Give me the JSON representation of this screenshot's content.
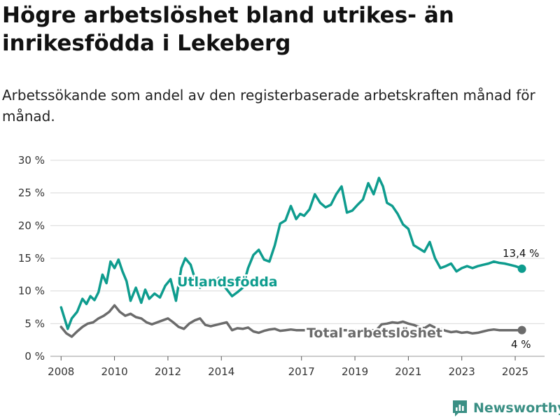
{
  "title": "Högre arbetslöshet bland utrikes- än inrikesfödda i Lekeberg",
  "subtitle": "Arbetssökande som andel av den registerbaserade arbetskraften månad för månad.",
  "brand": "Newsworthy",
  "colors": {
    "foreign": "#0e9c8e",
    "total": "#6b6b6b",
    "grid": "#d9d9d9",
    "brand": "#3a8f84"
  },
  "chart_data": {
    "type": "line",
    "ylim": [
      0,
      30
    ],
    "yticks": [
      0,
      5,
      10,
      15,
      20,
      25,
      30
    ],
    "ytick_labels": [
      "0 %",
      "5 %",
      "10 %",
      "15 %",
      "20 %",
      "25 %",
      "30 %"
    ],
    "xlim": [
      2007.6,
      2026.1
    ],
    "xticks": [
      2008,
      2010,
      2012,
      2014,
      2017,
      2019,
      2021,
      2023,
      2025
    ],
    "xtick_labels": [
      "2008",
      "2010",
      "2012",
      "2014",
      "2017",
      "2019",
      "2021",
      "2023",
      "2025"
    ],
    "grid": true,
    "series": [
      {
        "name": "Utlandsfödda",
        "key": "foreign",
        "end_label": "13,4 %",
        "x": [
          2008.0,
          2008.25,
          2008.4,
          2008.6,
          2008.8,
          2008.95,
          2009.1,
          2009.25,
          2009.4,
          2009.55,
          2009.7,
          2009.85,
          2010.0,
          2010.15,
          2010.3,
          2010.45,
          2010.6,
          2010.8,
          2011.0,
          2011.15,
          2011.3,
          2011.5,
          2011.7,
          2011.9,
          2012.1,
          2012.3,
          2012.5,
          2012.65,
          2012.85,
          2013.0,
          2013.2,
          2013.45,
          2013.7,
          2013.9,
          2014.15,
          2014.4,
          2014.6,
          2014.8,
          2015.0,
          2015.2,
          2015.4,
          2015.6,
          2015.8,
          2016.0,
          2016.2,
          2016.4,
          2016.6,
          2016.8,
          2016.95,
          2017.1,
          2017.3,
          2017.5,
          2017.7,
          2017.9,
          2018.1,
          2018.3,
          2018.5,
          2018.7,
          2018.9,
          2019.1,
          2019.3,
          2019.5,
          2019.7,
          2019.9,
          2020.05,
          2020.2,
          2020.4,
          2020.6,
          2020.8,
          2021.0,
          2021.2,
          2021.4,
          2021.6,
          2021.8,
          2022.0,
          2022.2,
          2022.4,
          2022.6,
          2022.8,
          2023.0,
          2023.2,
          2023.4,
          2023.6,
          2023.8,
          2024.0,
          2024.2,
          2024.4,
          2024.6,
          2024.8,
          2025.0,
          2025.15,
          2025.25
        ],
        "y": [
          7.5,
          4.2,
          5.8,
          6.8,
          8.8,
          8.0,
          9.2,
          8.6,
          9.8,
          12.5,
          11.2,
          14.5,
          13.5,
          14.8,
          13.0,
          11.5,
          8.5,
          10.5,
          8.2,
          10.2,
          8.8,
          9.6,
          9.0,
          10.8,
          11.8,
          8.5,
          13.5,
          15.0,
          14.0,
          12.0,
          10.5,
          11.2,
          10.8,
          12.0,
          10.5,
          9.2,
          9.8,
          10.5,
          13.5,
          15.5,
          16.3,
          14.8,
          14.5,
          17.0,
          20.3,
          20.8,
          23.0,
          21.0,
          21.8,
          21.5,
          22.5,
          24.8,
          23.5,
          22.8,
          23.2,
          24.8,
          26.0,
          22.0,
          22.3,
          23.2,
          24.0,
          26.5,
          24.8,
          27.3,
          26.0,
          23.5,
          23.0,
          21.8,
          20.2,
          19.5,
          17.0,
          16.5,
          16.0,
          17.5,
          15.0,
          13.5,
          13.8,
          14.2,
          13.0,
          13.5,
          13.8,
          13.5,
          13.8,
          14.0,
          14.2,
          14.5,
          14.3,
          14.2,
          14.0,
          13.8,
          13.6,
          13.4
        ]
      },
      {
        "name": "Total arbetslöshet",
        "key": "total",
        "end_label": "4 %",
        "x": [
          2008.0,
          2008.2,
          2008.4,
          2008.6,
          2008.8,
          2009.0,
          2009.2,
          2009.4,
          2009.6,
          2009.8,
          2010.0,
          2010.2,
          2010.4,
          2010.6,
          2010.8,
          2011.0,
          2011.2,
          2011.4,
          2011.6,
          2011.8,
          2012.0,
          2012.2,
          2012.4,
          2012.6,
          2012.8,
          2013.0,
          2013.2,
          2013.4,
          2013.6,
          2013.8,
          2014.0,
          2014.2,
          2014.4,
          2014.6,
          2014.8,
          2015.0,
          2015.2,
          2015.4,
          2015.6,
          2015.8,
          2016.0,
          2016.2,
          2016.4,
          2016.6,
          2016.8,
          2017.0,
          2017.2,
          2017.4,
          2017.6,
          2017.8,
          2018.0,
          2018.2,
          2018.4,
          2018.6,
          2018.8,
          2019.0,
          2019.2,
          2019.4,
          2019.6,
          2019.8,
          2020.0,
          2020.2,
          2020.4,
          2020.6,
          2020.8,
          2021.0,
          2021.2,
          2021.4,
          2021.6,
          2021.8,
          2022.0,
          2022.2,
          2022.4,
          2022.6,
          2022.8,
          2023.0,
          2023.2,
          2023.4,
          2023.6,
          2023.8,
          2024.0,
          2024.2,
          2024.4,
          2024.6,
          2024.8,
          2025.0,
          2025.25
        ],
        "y": [
          4.5,
          3.5,
          3.0,
          3.8,
          4.5,
          5.0,
          5.2,
          5.8,
          6.2,
          6.8,
          7.8,
          6.8,
          6.2,
          6.5,
          6.0,
          5.8,
          5.2,
          4.9,
          5.2,
          5.5,
          5.8,
          5.2,
          4.5,
          4.2,
          5.0,
          5.5,
          5.8,
          4.8,
          4.6,
          4.8,
          5.0,
          5.2,
          4.0,
          4.3,
          4.2,
          4.4,
          3.8,
          3.6,
          3.9,
          4.1,
          4.2,
          3.9,
          4.0,
          4.1,
          4.0,
          4.0,
          4.0,
          4.0,
          4.0,
          4.0,
          4.0,
          4.0,
          4.0,
          4.0,
          4.0,
          4.0,
          4.0,
          4.0,
          4.0,
          4.0,
          4.9,
          5.0,
          5.2,
          5.1,
          5.3,
          5.0,
          4.8,
          4.5,
          4.3,
          4.8,
          4.4,
          4.2,
          3.9,
          3.7,
          3.8,
          3.6,
          3.7,
          3.5,
          3.6,
          3.8,
          4.0,
          4.1,
          4.0,
          4.0,
          4.0,
          4.0,
          4.0
        ]
      }
    ]
  }
}
